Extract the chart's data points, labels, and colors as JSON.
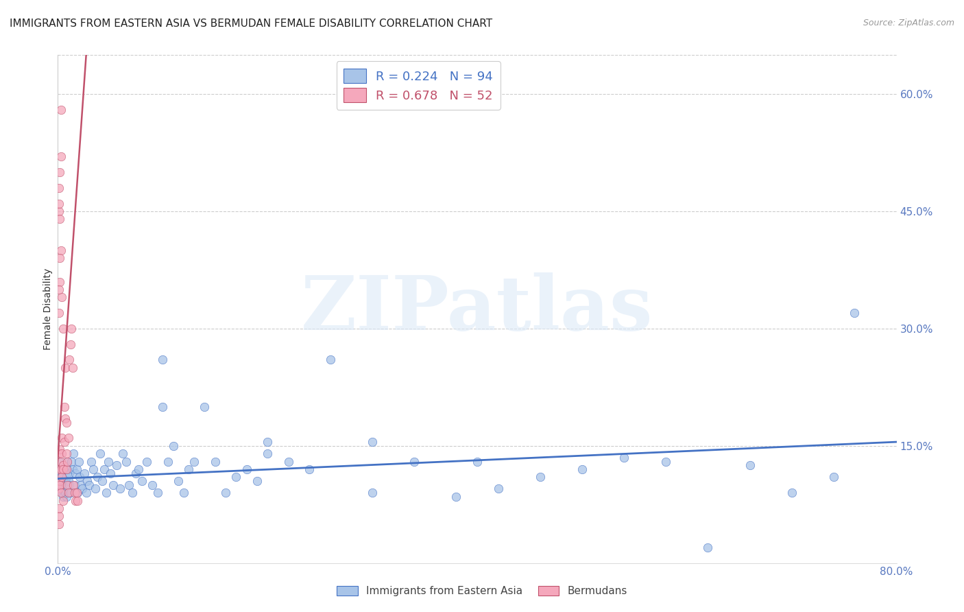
{
  "title": "IMMIGRANTS FROM EASTERN ASIA VS BERMUDAN FEMALE DISABILITY CORRELATION CHART",
  "source": "Source: ZipAtlas.com",
  "ylabel": "Female Disability",
  "xlim": [
    0.0,
    0.8
  ],
  "ylim": [
    0.0,
    0.65
  ],
  "xticks": [
    0.0,
    0.1,
    0.2,
    0.3,
    0.4,
    0.5,
    0.6,
    0.7,
    0.8
  ],
  "xtick_labels": [
    "0.0%",
    "",
    "",
    "",
    "",
    "",
    "",
    "",
    "80.0%"
  ],
  "ytick_right_values": [
    0.15,
    0.3,
    0.45,
    0.6
  ],
  "ytick_right_labels": [
    "15.0%",
    "30.0%",
    "45.0%",
    "60.0%"
  ],
  "blue_R": "0.224",
  "blue_N": "94",
  "pink_R": "0.678",
  "pink_N": "52",
  "blue_color": "#a8c4e8",
  "pink_color": "#f5a8bc",
  "blue_line_color": "#4472c4",
  "pink_line_color": "#c0506a",
  "legend_label_blue": "Immigrants from Eastern Asia",
  "legend_label_pink": "Bermudans",
  "watermark": "ZIPatlas",
  "blue_scatter": {
    "x": [
      0.001,
      0.002,
      0.002,
      0.003,
      0.003,
      0.004,
      0.004,
      0.005,
      0.005,
      0.006,
      0.006,
      0.007,
      0.007,
      0.008,
      0.008,
      0.009,
      0.009,
      0.01,
      0.01,
      0.011,
      0.011,
      0.012,
      0.013,
      0.014,
      0.015,
      0.016,
      0.017,
      0.018,
      0.019,
      0.02,
      0.021,
      0.022,
      0.023,
      0.025,
      0.027,
      0.028,
      0.03,
      0.032,
      0.034,
      0.036,
      0.038,
      0.04,
      0.042,
      0.044,
      0.046,
      0.048,
      0.05,
      0.053,
      0.056,
      0.059,
      0.062,
      0.065,
      0.068,
      0.071,
      0.074,
      0.077,
      0.08,
      0.085,
      0.09,
      0.095,
      0.1,
      0.105,
      0.11,
      0.115,
      0.12,
      0.125,
      0.13,
      0.14,
      0.15,
      0.16,
      0.17,
      0.18,
      0.19,
      0.2,
      0.22,
      0.24,
      0.26,
      0.3,
      0.34,
      0.38,
      0.42,
      0.46,
      0.5,
      0.54,
      0.58,
      0.62,
      0.66,
      0.7,
      0.74,
      0.76,
      0.1,
      0.2,
      0.3,
      0.4
    ],
    "y": [
      0.13,
      0.12,
      0.095,
      0.11,
      0.1,
      0.09,
      0.115,
      0.085,
      0.105,
      0.12,
      0.095,
      0.1,
      0.09,
      0.085,
      0.11,
      0.13,
      0.12,
      0.09,
      0.105,
      0.1,
      0.115,
      0.09,
      0.13,
      0.12,
      0.14,
      0.1,
      0.115,
      0.12,
      0.09,
      0.13,
      0.11,
      0.1,
      0.095,
      0.115,
      0.09,
      0.105,
      0.1,
      0.13,
      0.12,
      0.095,
      0.11,
      0.14,
      0.105,
      0.12,
      0.09,
      0.13,
      0.115,
      0.1,
      0.125,
      0.095,
      0.14,
      0.13,
      0.1,
      0.09,
      0.115,
      0.12,
      0.105,
      0.13,
      0.1,
      0.09,
      0.2,
      0.13,
      0.15,
      0.105,
      0.09,
      0.12,
      0.13,
      0.2,
      0.13,
      0.09,
      0.11,
      0.12,
      0.105,
      0.14,
      0.13,
      0.12,
      0.26,
      0.155,
      0.13,
      0.085,
      0.095,
      0.11,
      0.12,
      0.135,
      0.13,
      0.02,
      0.125,
      0.09,
      0.11,
      0.32,
      0.26,
      0.155,
      0.09,
      0.13
    ]
  },
  "pink_scatter": {
    "x": [
      0.001,
      0.001,
      0.001,
      0.002,
      0.002,
      0.002,
      0.003,
      0.003,
      0.003,
      0.004,
      0.004,
      0.004,
      0.005,
      0.005,
      0.005,
      0.006,
      0.006,
      0.007,
      0.007,
      0.008,
      0.008,
      0.008,
      0.009,
      0.009,
      0.01,
      0.01,
      0.011,
      0.012,
      0.013,
      0.014,
      0.015,
      0.016,
      0.017,
      0.018,
      0.019,
      0.001,
      0.002,
      0.003,
      0.004,
      0.005,
      0.001,
      0.002,
      0.001,
      0.002,
      0.003,
      0.001,
      0.002,
      0.003,
      0.001,
      0.001,
      0.001,
      0.001
    ],
    "y": [
      0.12,
      0.14,
      0.095,
      0.105,
      0.145,
      0.1,
      0.13,
      0.12,
      0.09,
      0.11,
      0.16,
      0.14,
      0.125,
      0.08,
      0.12,
      0.2,
      0.155,
      0.25,
      0.185,
      0.12,
      0.18,
      0.14,
      0.1,
      0.13,
      0.09,
      0.16,
      0.26,
      0.28,
      0.3,
      0.25,
      0.1,
      0.09,
      0.08,
      0.09,
      0.08,
      0.32,
      0.36,
      0.4,
      0.34,
      0.3,
      0.35,
      0.39,
      0.45,
      0.5,
      0.58,
      0.48,
      0.44,
      0.52,
      0.46,
      0.05,
      0.06,
      0.07
    ]
  },
  "blue_trendline": {
    "x": [
      0.0,
      0.8
    ],
    "y": [
      0.108,
      0.155
    ]
  },
  "pink_trendline": {
    "x": [
      -0.005,
      0.027
    ],
    "y": [
      0.04,
      0.65
    ]
  }
}
